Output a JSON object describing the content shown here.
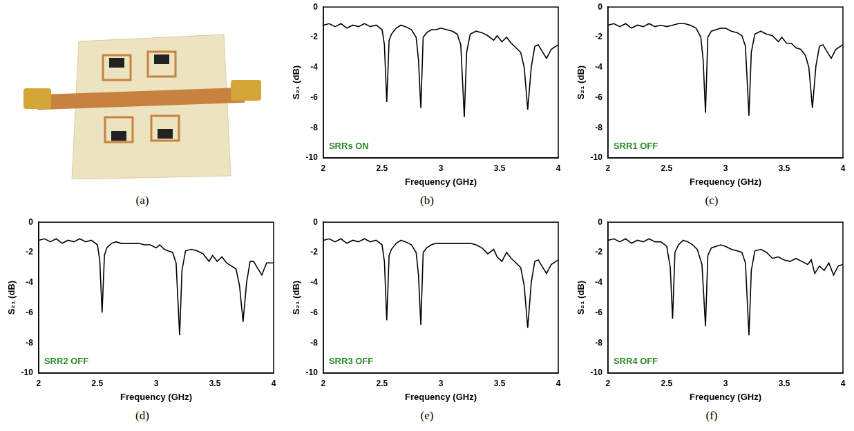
{
  "panel_a": {
    "caption": "(a)"
  },
  "chart_data": [
    {
      "type": "line",
      "caption": "(b)",
      "annotation": "SRRs ON",
      "x_label": "Frequency (GHz)",
      "y_label": "S₂₁ (dB)",
      "color": "#000000",
      "grid": false,
      "xlim": [
        2,
        4
      ],
      "xticks": [
        2,
        2.5,
        3,
        3.5,
        4
      ],
      "ylim": [
        -10,
        0
      ],
      "yticks": [
        -10,
        -8,
        -6,
        -4,
        -2,
        0
      ],
      "x": [
        2.0,
        2.05,
        2.1,
        2.15,
        2.2,
        2.25,
        2.3,
        2.35,
        2.4,
        2.45,
        2.5,
        2.52,
        2.54,
        2.56,
        2.58,
        2.62,
        2.66,
        2.7,
        2.75,
        2.79,
        2.81,
        2.83,
        2.85,
        2.88,
        2.92,
        2.96,
        3.0,
        3.05,
        3.1,
        3.14,
        3.17,
        3.2,
        3.22,
        3.25,
        3.3,
        3.35,
        3.4,
        3.45,
        3.48,
        3.52,
        3.56,
        3.6,
        3.64,
        3.68,
        3.71,
        3.74,
        3.77,
        3.8,
        3.83,
        3.86,
        3.9,
        3.94,
        4.0
      ],
      "values": [
        -1.2,
        -1.1,
        -1.3,
        -1.1,
        -1.4,
        -1.2,
        -1.3,
        -1.1,
        -1.3,
        -1.2,
        -1.5,
        -2.5,
        -6.3,
        -2.2,
        -1.8,
        -1.4,
        -1.2,
        -1.3,
        -1.5,
        -2.0,
        -3.5,
        -6.7,
        -2.0,
        -1.7,
        -1.5,
        -1.5,
        -1.4,
        -1.5,
        -1.6,
        -1.8,
        -2.5,
        -7.3,
        -3.0,
        -1.8,
        -1.6,
        -1.7,
        -1.9,
        -2.2,
        -1.9,
        -2.3,
        -2.0,
        -2.4,
        -2.7,
        -3.0,
        -4.0,
        -6.8,
        -4.0,
        -2.6,
        -2.5,
        -2.9,
        -3.4,
        -2.8,
        -2.5
      ]
    },
    {
      "type": "line",
      "caption": "(c)",
      "annotation": "SRR1 OFF",
      "x_label": "Frequency (GHz)",
      "y_label": "S₂₁ (dB)",
      "color": "#000000",
      "grid": false,
      "xlim": [
        2,
        4
      ],
      "xticks": [
        2,
        2.5,
        3,
        3.5,
        4
      ],
      "ylim": [
        -10,
        0
      ],
      "yticks": [
        -10,
        -8,
        -6,
        -4,
        -2,
        0
      ],
      "x": [
        2.0,
        2.05,
        2.1,
        2.15,
        2.2,
        2.25,
        2.3,
        2.35,
        2.4,
        2.45,
        2.5,
        2.55,
        2.6,
        2.65,
        2.7,
        2.75,
        2.79,
        2.81,
        2.83,
        2.85,
        2.88,
        2.92,
        2.96,
        3.0,
        3.05,
        3.1,
        3.14,
        3.17,
        3.2,
        3.22,
        3.25,
        3.3,
        3.35,
        3.4,
        3.45,
        3.48,
        3.52,
        3.56,
        3.6,
        3.64,
        3.68,
        3.71,
        3.74,
        3.77,
        3.8,
        3.83,
        3.86,
        3.9,
        3.94,
        4.0
      ],
      "values": [
        -1.2,
        -1.1,
        -1.3,
        -1.1,
        -1.4,
        -1.2,
        -1.3,
        -1.1,
        -1.3,
        -1.2,
        -1.3,
        -1.2,
        -1.1,
        -1.1,
        -1.2,
        -1.4,
        -2.0,
        -3.5,
        -7.0,
        -2.0,
        -1.6,
        -1.5,
        -1.4,
        -1.4,
        -1.6,
        -1.7,
        -1.9,
        -2.6,
        -7.2,
        -3.0,
        -1.8,
        -1.6,
        -1.8,
        -1.9,
        -2.3,
        -2.0,
        -2.4,
        -2.4,
        -2.7,
        -2.8,
        -3.2,
        -4.0,
        -6.7,
        -3.9,
        -2.6,
        -2.5,
        -2.9,
        -3.4,
        -2.8,
        -2.5
      ]
    },
    {
      "type": "line",
      "caption": "(d)",
      "annotation": "SRR2 OFF",
      "x_label": "Frequency (GHz)",
      "y_label": "S₂₁ (dB)",
      "color": "#000000",
      "grid": false,
      "xlim": [
        2,
        4
      ],
      "xticks": [
        2,
        2.5,
        3,
        3.5,
        4
      ],
      "ylim": [
        -10,
        0
      ],
      "yticks": [
        -10,
        -8,
        -6,
        -4,
        -2,
        0
      ],
      "x": [
        2.0,
        2.05,
        2.1,
        2.15,
        2.2,
        2.25,
        2.3,
        2.35,
        2.4,
        2.45,
        2.5,
        2.52,
        2.54,
        2.56,
        2.58,
        2.62,
        2.66,
        2.7,
        2.75,
        2.8,
        2.85,
        2.9,
        2.95,
        3.0,
        3.03,
        3.07,
        3.1,
        3.14,
        3.17,
        3.2,
        3.22,
        3.25,
        3.3,
        3.35,
        3.4,
        3.45,
        3.48,
        3.52,
        3.56,
        3.6,
        3.64,
        3.68,
        3.71,
        3.74,
        3.77,
        3.8,
        3.83,
        3.86,
        3.9,
        3.94,
        4.0
      ],
      "values": [
        -1.2,
        -1.1,
        -1.3,
        -1.1,
        -1.4,
        -1.2,
        -1.3,
        -1.1,
        -1.3,
        -1.2,
        -1.5,
        -2.5,
        -6.0,
        -2.2,
        -1.7,
        -1.4,
        -1.3,
        -1.4,
        -1.4,
        -1.4,
        -1.4,
        -1.5,
        -1.5,
        -1.7,
        -1.5,
        -1.8,
        -1.9,
        -2.0,
        -2.7,
        -7.5,
        -3.2,
        -1.9,
        -1.8,
        -1.9,
        -2.1,
        -2.6,
        -2.2,
        -2.6,
        -2.3,
        -2.7,
        -2.9,
        -3.1,
        -4.2,
        -6.6,
        -4.0,
        -2.6,
        -2.6,
        -3.0,
        -3.5,
        -2.7,
        -2.7
      ]
    },
    {
      "type": "line",
      "caption": "(e)",
      "annotation": "SRR3 OFF",
      "x_label": "Frequency (GHz)",
      "y_label": "S₂₁ (dB)",
      "color": "#000000",
      "grid": false,
      "xlim": [
        2,
        4
      ],
      "xticks": [
        2,
        2.5,
        3,
        3.5,
        4
      ],
      "ylim": [
        -10,
        0
      ],
      "yticks": [
        -10,
        -8,
        -6,
        -4,
        -2,
        0
      ],
      "x": [
        2.0,
        2.05,
        2.1,
        2.15,
        2.2,
        2.25,
        2.3,
        2.35,
        2.4,
        2.45,
        2.5,
        2.52,
        2.54,
        2.56,
        2.58,
        2.62,
        2.66,
        2.7,
        2.75,
        2.79,
        2.81,
        2.83,
        2.85,
        2.88,
        2.92,
        2.96,
        3.0,
        3.05,
        3.1,
        3.15,
        3.2,
        3.25,
        3.3,
        3.35,
        3.4,
        3.45,
        3.48,
        3.52,
        3.56,
        3.6,
        3.64,
        3.68,
        3.71,
        3.74,
        3.77,
        3.8,
        3.83,
        3.86,
        3.9,
        3.94,
        4.0
      ],
      "values": [
        -1.2,
        -1.1,
        -1.3,
        -1.1,
        -1.4,
        -1.2,
        -1.3,
        -1.1,
        -1.3,
        -1.2,
        -1.5,
        -2.6,
        -6.5,
        -2.2,
        -1.8,
        -1.4,
        -1.2,
        -1.3,
        -1.5,
        -2.0,
        -3.5,
        -6.8,
        -2.0,
        -1.7,
        -1.5,
        -1.4,
        -1.4,
        -1.4,
        -1.4,
        -1.4,
        -1.4,
        -1.4,
        -1.5,
        -1.7,
        -2.1,
        -1.8,
        -2.3,
        -2.6,
        -2.0,
        -2.4,
        -2.7,
        -3.0,
        -4.2,
        -7.0,
        -4.0,
        -2.6,
        -2.5,
        -2.9,
        -3.4,
        -2.8,
        -2.5
      ]
    },
    {
      "type": "line",
      "caption": "(f)",
      "annotation": "SRR4 OFF",
      "x_label": "Frequency (GHz)",
      "y_label": "S₂₁ (dB)",
      "color": "#000000",
      "grid": false,
      "xlim": [
        2,
        4
      ],
      "xticks": [
        2,
        2.5,
        3,
        3.5,
        4
      ],
      "ylim": [
        -10,
        0
      ],
      "yticks": [
        -10,
        -8,
        -6,
        -4,
        -2,
        0
      ],
      "x": [
        2.0,
        2.05,
        2.1,
        2.15,
        2.2,
        2.25,
        2.3,
        2.35,
        2.4,
        2.45,
        2.5,
        2.53,
        2.55,
        2.57,
        2.6,
        2.64,
        2.68,
        2.72,
        2.76,
        2.8,
        2.83,
        2.85,
        2.88,
        2.92,
        2.96,
        3.0,
        3.05,
        3.1,
        3.14,
        3.17,
        3.2,
        3.22,
        3.25,
        3.3,
        3.35,
        3.4,
        3.45,
        3.5,
        3.55,
        3.6,
        3.65,
        3.7,
        3.73,
        3.76,
        3.8,
        3.84,
        3.88,
        3.92,
        3.96,
        4.0
      ],
      "values": [
        -1.2,
        -1.1,
        -1.3,
        -1.1,
        -1.4,
        -1.2,
        -1.3,
        -1.1,
        -1.3,
        -1.3,
        -1.6,
        -3.0,
        -6.4,
        -2.0,
        -1.5,
        -1.2,
        -1.3,
        -1.5,
        -1.8,
        -2.8,
        -6.9,
        -2.2,
        -1.7,
        -1.6,
        -1.5,
        -1.6,
        -1.8,
        -1.9,
        -2.0,
        -2.7,
        -7.5,
        -3.2,
        -1.9,
        -1.8,
        -2.0,
        -2.4,
        -2.3,
        -2.5,
        -2.6,
        -2.4,
        -2.6,
        -2.8,
        -2.5,
        -3.4,
        -2.9,
        -3.2,
        -2.7,
        -3.5,
        -2.9,
        -2.8
      ]
    }
  ]
}
